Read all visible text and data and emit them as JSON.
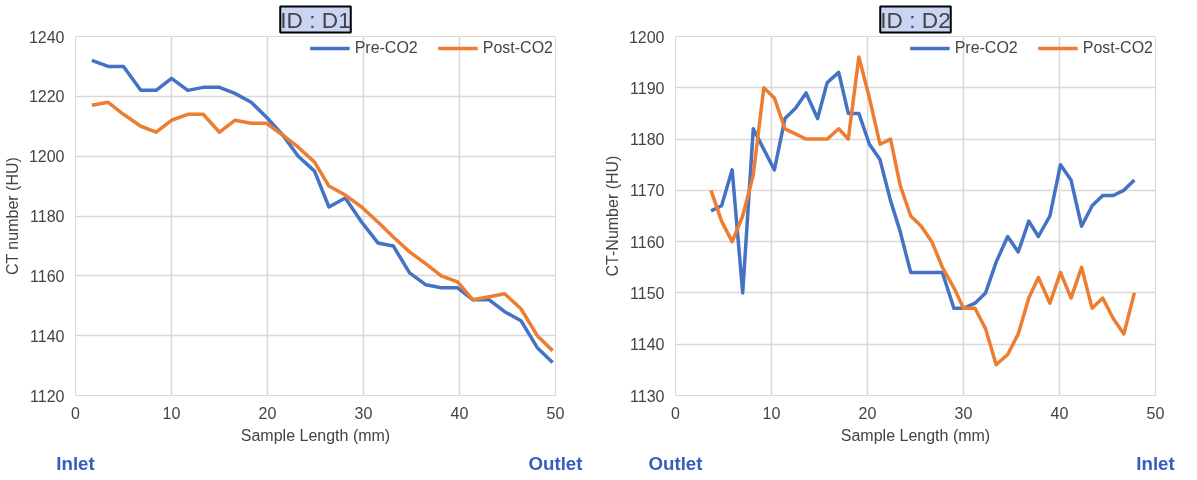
{
  "chart_data": [
    {
      "type": "line",
      "title": "ID : D1",
      "xlabel": "Sample Length (mm)",
      "ylabel": "CT number (HU)",
      "xlim": [
        0,
        50
      ],
      "xticks": [
        0,
        10,
        20,
        30,
        40,
        50
      ],
      "ylim": [
        1120,
        1240
      ],
      "yticks": [
        1120,
        1140,
        1160,
        1180,
        1200,
        1220,
        1240
      ],
      "grid": true,
      "legend": "top right",
      "annotations": [
        "Inlet",
        "Outlet"
      ],
      "x": [
        1.7,
        3.4,
        5.0,
        6.8,
        8.4,
        10.0,
        11.7,
        13.3,
        15.0,
        16.6,
        18.3,
        19.9,
        21.6,
        23.2,
        24.9,
        26.4,
        28.1,
        29.8,
        31.5,
        33.1,
        34.8,
        36.5,
        38.1,
        39.8,
        41.4,
        43.1,
        44.7,
        46.4,
        48.1,
        49.7
      ],
      "series": [
        {
          "name": "Pre-CO2",
          "color": "#4472c4",
          "values": [
            1232,
            1230,
            1230,
            1222,
            1222,
            1226,
            1222,
            1223,
            1223,
            1221,
            1218,
            1213,
            1207,
            1200,
            1195,
            1183,
            1186,
            1178,
            1171,
            1170,
            1161,
            1157,
            1156,
            1156,
            1152,
            1152,
            1148,
            1145,
            1136,
            1131
          ]
        },
        {
          "name": "Post-CO2",
          "color": "#ed7d31",
          "values": [
            1217,
            1218,
            1214,
            1210,
            1208,
            1212,
            1214,
            1214,
            1208,
            1212,
            1211,
            1211,
            1207,
            1203,
            1198,
            1190,
            1187,
            1183,
            1178,
            1173,
            1168,
            1164,
            1160,
            1158,
            1152,
            1153,
            1154,
            1149,
            1140,
            1135
          ]
        }
      ]
    },
    {
      "type": "line",
      "title": "ID : D2",
      "xlabel": "Sample Length (mm)",
      "ylabel": "CT-Number (HU)",
      "xlim": [
        0,
        50
      ],
      "xticks": [
        0,
        10,
        20,
        30,
        40,
        50
      ],
      "ylim": [
        1130,
        1200
      ],
      "yticks": [
        1130,
        1140,
        1150,
        1160,
        1170,
        1180,
        1190,
        1200
      ],
      "grid": true,
      "legend": "top right",
      "annotations": [
        "Outlet",
        "Inlet"
      ],
      "x": [
        3.7,
        4.8,
        5.9,
        7.0,
        8.1,
        9.2,
        10.3,
        11.4,
        12.5,
        13.6,
        14.8,
        15.8,
        17.0,
        18.0,
        19.1,
        20.2,
        21.3,
        22.4,
        23.4,
        24.5,
        25.6,
        26.7,
        27.8,
        29.0,
        30.0,
        31.2,
        32.3,
        33.4,
        34.6,
        35.7,
        36.8,
        37.8,
        39.0,
        40.1,
        41.2,
        42.3,
        43.4,
        44.5,
        45.6,
        46.7,
        47.8
      ],
      "series": [
        {
          "name": "Pre-CO2",
          "color": "#4472c4",
          "values": [
            1166,
            1167,
            1174,
            1150,
            1182,
            1178,
            1174,
            1184,
            1186,
            1189,
            1184,
            1191,
            1193,
            1185,
            1185,
            1179,
            1176,
            1168,
            1162,
            1154,
            1154,
            1154,
            1154,
            1147,
            1147,
            1148,
            1150,
            1156,
            1161,
            1158,
            1164,
            1161,
            1165,
            1175,
            1172,
            1163,
            1167,
            1169,
            1169,
            1170,
            1172
          ]
        },
        {
          "name": "Post-CO2",
          "color": "#ed7d31",
          "values": [
            1170,
            1164,
            1160,
            1165,
            1173,
            1190,
            1188,
            1182,
            1181,
            1180,
            1180,
            1180,
            1182,
            1180,
            1196,
            1188,
            1179,
            1180,
            1171,
            1165,
            1163,
            1160,
            1155,
            1151,
            1147,
            1147,
            1143,
            1136,
            1138,
            1142,
            1149,
            1153,
            1148,
            1154,
            1149,
            1155,
            1147,
            1149,
            1145,
            1142,
            1150
          ]
        }
      ]
    }
  ]
}
